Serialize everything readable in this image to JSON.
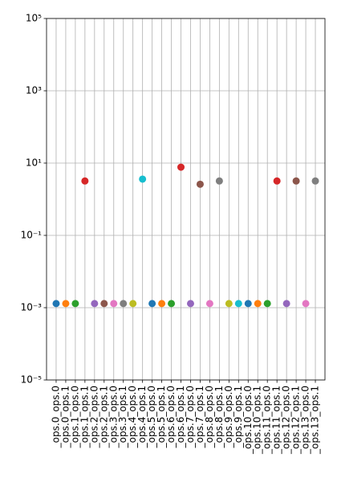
{
  "chart_data": {
    "type": "scatter",
    "categories": [
      "_ops.0_ops.0",
      "_ops.0_ops.1",
      "_ops.1_ops.0",
      "_ops.1_ops.1",
      "_ops.2_ops.0",
      "_ops.2_ops.1",
      "_ops.3_ops.0",
      "_ops.3_ops.1",
      "_ops.4_ops.0",
      "_ops.4_ops.1",
      "_ops.5_ops.0",
      "_ops.5_ops.1",
      "_ops.6_ops.0",
      "_ops.6_ops.1",
      "_ops.7_ops.0",
      "_ops.7_ops.1",
      "_ops.8_ops.0",
      "_ops.8_ops.1",
      "_ops.9_ops.0",
      "_ops.9_ops.1",
      "_ops.10_ops.0",
      "_ops.10_ops.1",
      "_ops.11_ops.0",
      "_ops.11_ops.1",
      "_ops.12_ops.0",
      "_ops.12_ops.1",
      "_ops.13_ops.0",
      "_ops.13_ops.1"
    ],
    "values": [
      0.0013,
      0.0013,
      0.0013,
      3.2,
      0.0013,
      0.0013,
      0.0013,
      0.0013,
      0.0013,
      3.6,
      0.0013,
      0.0013,
      0.0013,
      7.7,
      0.0013,
      2.6,
      0.0013,
      3.2,
      0.0013,
      0.0013,
      0.0013,
      0.0013,
      0.0013,
      3.2,
      0.0013,
      3.2,
      0.0013,
      3.2
    ],
    "colors": [
      "#1f77b4",
      "#ff7f0e",
      "#2ca02c",
      "#d62728",
      "#9467bd",
      "#8c564b",
      "#e377c2",
      "#7f7f7f",
      "#bcbd22",
      "#17becf",
      "#1f77b4",
      "#ff7f0e",
      "#2ca02c",
      "#d62728",
      "#9467bd",
      "#8c564b",
      "#e377c2",
      "#7f7f7f",
      "#bcbd22",
      "#17becf",
      "#1f77b4",
      "#ff7f0e",
      "#2ca02c",
      "#d62728",
      "#9467bd",
      "#8c564b",
      "#e377c2",
      "#7f7f7f"
    ],
    "ylog": true,
    "ylim": [
      1e-05,
      100000
    ],
    "yticks": [
      {
        "value": 1e-05,
        "label": "10⁻⁵"
      },
      {
        "value": 0.001,
        "label": "10⁻³"
      },
      {
        "value": 0.1,
        "label": "10⁻¹"
      },
      {
        "value": 10,
        "label": "10¹"
      },
      {
        "value": 1000,
        "label": "10³"
      },
      {
        "value": 100000,
        "label": "10⁵"
      }
    ],
    "grid": true
  }
}
